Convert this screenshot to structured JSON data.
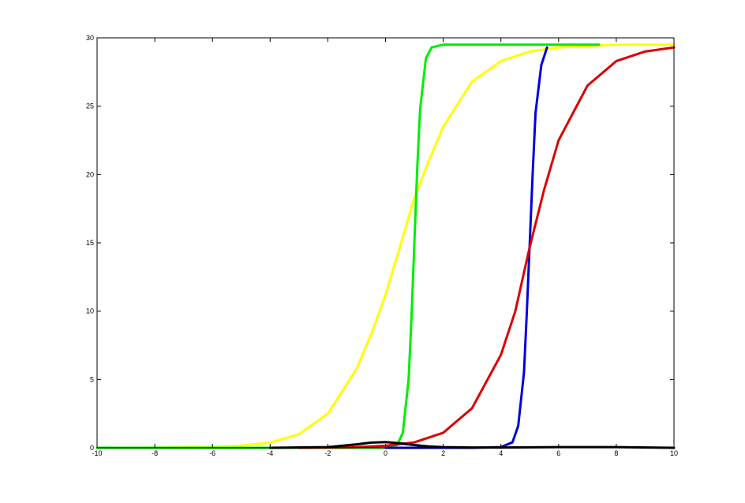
{
  "chart_data": {
    "type": "line",
    "title": "",
    "xlabel": "",
    "ylabel": "",
    "xlim": [
      -10,
      10
    ],
    "ylim": [
      0,
      30
    ],
    "grid": false,
    "legend": "none",
    "x_ticks": [
      "-10",
      "-8",
      "-6",
      "-4",
      "-2",
      "0",
      "2",
      "4",
      "6",
      "8",
      "10"
    ],
    "y_ticks": [
      "0",
      "5",
      "10",
      "15",
      "20",
      "25",
      "30"
    ],
    "series": [
      {
        "color": "#ffff00",
        "x": [
          -10,
          -8,
          -6,
          -5,
          -4,
          -3,
          -2,
          -1,
          -0.5,
          0,
          0.5,
          1,
          1.5,
          2,
          3,
          4,
          5,
          6,
          8,
          10
        ],
        "y": [
          0.0,
          0.01,
          0.06,
          0.15,
          0.39,
          1.0,
          2.5,
          5.8,
          8.3,
          11.2,
          14.7,
          18.3,
          21.0,
          23.5,
          26.8,
          28.3,
          29.0,
          29.3,
          29.5,
          29.5
        ]
      },
      {
        "color": "#00ee00",
        "x": [
          -10,
          -2,
          0,
          0.4,
          0.6,
          0.8,
          0.9,
          1.0,
          1.1,
          1.2,
          1.4,
          1.6,
          2,
          4,
          7.4
        ],
        "y": [
          0.0,
          0.0,
          0.01,
          0.2,
          1.1,
          5.0,
          9.5,
          15.0,
          20.5,
          24.8,
          28.5,
          29.3,
          29.5,
          29.5,
          29.5
        ]
      },
      {
        "color": "#0000dd",
        "x": [
          0,
          3,
          4,
          4.4,
          4.6,
          4.8,
          4.9,
          5.0,
          5.1,
          5.2,
          5.4,
          5.6
        ],
        "y": [
          0.0,
          0.0,
          0.05,
          0.4,
          1.6,
          5.5,
          10.0,
          15.0,
          20.0,
          24.5,
          28.0,
          29.3
        ]
      },
      {
        "color": "#dd0000",
        "x": [
          -3,
          -2,
          -1,
          0,
          1,
          2,
          3,
          4,
          4.5,
          5,
          5.5,
          6,
          7,
          8,
          9,
          10
        ],
        "y": [
          0.0,
          0.02,
          0.05,
          0.15,
          0.4,
          1.1,
          2.9,
          6.8,
          10.0,
          14.7,
          18.9,
          22.5,
          26.5,
          28.3,
          29.0,
          29.3
        ]
      },
      {
        "color": "#000000",
        "x": [
          -4,
          -2,
          -1,
          -0.5,
          0,
          0.5,
          1,
          1.5,
          2,
          3,
          4,
          6,
          8,
          10
        ],
        "y": [
          0.0,
          0.05,
          0.25,
          0.38,
          0.42,
          0.33,
          0.2,
          0.1,
          0.05,
          0.02,
          0.02,
          0.05,
          0.05,
          0.0
        ]
      }
    ]
  }
}
